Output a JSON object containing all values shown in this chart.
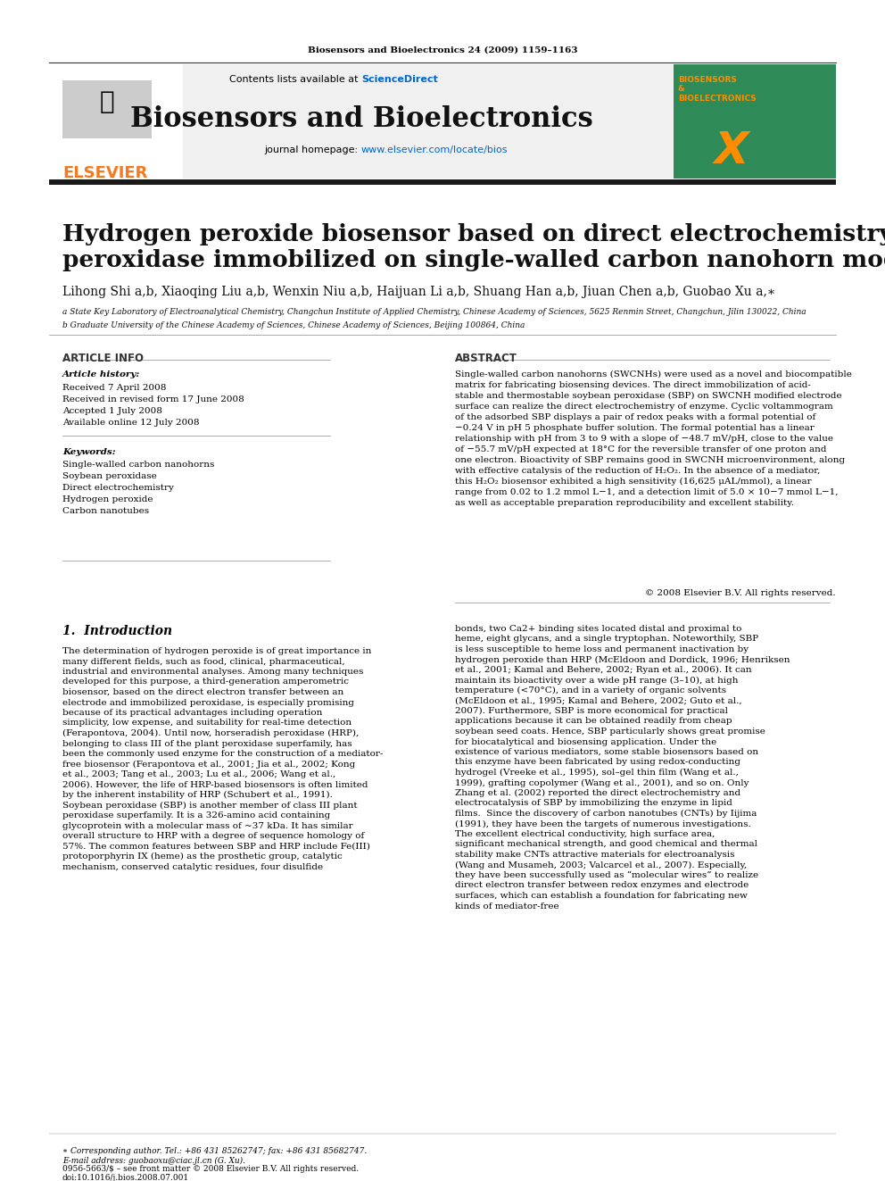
{
  "page_bg": "#ffffff",
  "header_citation": "Biosensors and Bioelectronics 24 (2009) 1159–1163",
  "journal_name": "Biosensors and Bioelectronics",
  "contents_text": "Contents lists available at ScienceDirect",
  "homepage_text": "journal homepage: www.elsevier.com/locate/bios",
  "elsevier_color": "#f47920",
  "sciencedirect_color": "#0066cc",
  "homepage_color": "#0066cc",
  "header_bg": "#f0f0f0",
  "journal_cover_bg": "#2e8b57",
  "paper_title": "Hydrogen peroxide biosensor based on direct electrochemistry of soybean\nperoxidase immobilized on single-walled carbon nanohorn modified electrode",
  "authors": "Lihong Shi a,b, Xiaoqing Liu a,b, Wenxin Niu a,b, Haijuan Li a,b, Shuang Han a,b, Jiuan Chen a,b, Guobao Xu a,∗",
  "affiliation_a": "a State Key Laboratory of Electroanalytical Chemistry, Changchun Institute of Applied Chemistry, Chinese Academy of Sciences, 5625 Renmin Street, Changchun, Jilin 130022, China",
  "affiliation_b": "b Graduate University of the Chinese Academy of Sciences, Chinese Academy of Sciences, Beijing 100864, China",
  "article_info_header": "ARTICLE INFO",
  "abstract_header": "ABSTRACT",
  "article_history_label": "Article history:",
  "received": "Received 7 April 2008",
  "revised": "Received in revised form 17 June 2008",
  "accepted": "Accepted 1 July 2008",
  "available": "Available online 12 July 2008",
  "keywords_label": "Keywords:",
  "keywords": [
    "Single-walled carbon nanohorns",
    "Soybean peroxidase",
    "Direct electrochemistry",
    "Hydrogen peroxide",
    "Carbon nanotubes"
  ],
  "abstract_text": "Single-walled carbon nanohorns (SWCNHs) were used as a novel and biocompatible matrix for fabricating biosensing devices. The direct immobilization of acid-stable and thermostable soybean peroxidase (SBP) on SWCNH modified electrode surface can realize the direct electrochemistry of enzyme. Cyclic voltammogram of the adsorbed SBP displays a pair of redox peaks with a formal potential of −0.24 V in pH 5 phosphate buffer solution. The formal potential has a linear relationship with pH from 3 to 9 with a slope of −48.7 mV/pH, close to the value of −55.7 mV/pH expected at 18°C for the reversible transfer of one proton and one electron. Bioactivity of SBP remains good in SWCNH microenvironment, along with effective catalysis of the reduction of H₂O₂. In the absence of a mediator, this H₂O₂ biosensor exhibited a high sensitivity (16,625 μAL/mmol), a linear range from 0.02 to 1.2 mmol L−1, and a detection limit of 5.0 × 10−7 mmol L−1, as well as acceptable preparation reproducibility and excellent stability.",
  "copyright": "© 2008 Elsevier B.V. All rights reserved.",
  "intro_header": "1.  Introduction",
  "intro_col1": "The determination of hydrogen peroxide is of great importance in many different fields, such as food, clinical, pharmaceutical, industrial and environmental analyses. Among many techniques developed for this purpose, a third-generation amperometric biosensor, based on the direct electron transfer between an electrode and immobilized peroxidase, is especially promising because of its practical advantages including operation simplicity, low expense, and suitability for real-time detection (Ferapontova, 2004). Until now, horseradish peroxidase (HRP), belonging to class III of the plant peroxidase superfamily, has been the commonly used enzyme for the construction of a mediator-free biosensor (Ferapontova et al., 2001; Jia et al., 2002; Kong et al., 2003; Tang et al., 2003; Lu et al., 2006; Wang et al., 2006). However, the life of HRP-based biosensors is often limited by the inherent instability of HRP (Schubert et al., 1991). Soybean peroxidase (SBP) is another member of class III plant peroxidase superfamily. It is a 326-amino acid containing glycoprotein with a molecular mass of ~37 kDa. It has similar overall structure to HRP with a degree of sequence homology of 57%. The common features between SBP and HRP include Fe(III) protoporphyrin IX (heme) as the prosthetic group, catalytic mechanism, conserved catalytic residues, four disulfide",
  "intro_col2": "bonds, two Ca2+ binding sites located distal and proximal to heme, eight glycans, and a single tryptophan. Noteworthily, SBP is less susceptible to heme loss and permanent inactivation by hydrogen peroxide than HRP (McEldoon and Dordick, 1996; Henriksen et al., 2001; Kamal and Behere, 2002; Ryan et al., 2006). It can maintain its bioactivity over a wide pH range (3–10), at high temperature (<70°C), and in a variety of organic solvents (McEldoon et al., 1995; Kamal and Behere, 2002; Guto et al., 2007). Furthermore, SBP is more economical for practical applications because it can be obtained readily from cheap soybean seed coats. Hence, SBP particularly shows great promise for biocatalytical and biosensing application. Under the existence of various mediators, some stable biosensors based on this enzyme have been fabricated by using redox-conducting hydrogel (Vreeke et al., 1995), sol–gel thin film (Wang et al., 1999), grafting copolymer (Wang et al., 2001), and so on. Only Zhang et al. (2002) reported the direct electrochemistry and electrocatalysis of SBP by immobilizing the enzyme in lipid films.\n\nSince the discovery of carbon nanotubes (CNTs) by Iijima (1991), they have been the targets of numerous investigations. The excellent electrical conductivity, high surface area, significant mechanical strength, and good chemical and thermal stability make CNTs attractive materials for electroanalysis (Wang and Musameh, 2003; Valcarcel et al., 2007). Especially, they have been successfully used as “molecular wires” to realize direct electron transfer between redox enzymes and electrode surfaces, which can establish a foundation for fabricating new kinds of mediator-free",
  "footer_left": "0956-5663/$ – see front matter © 2008 Elsevier B.V. All rights reserved.\ndoi:10.1016/j.bios.2008.07.001",
  "footer_corresponding": "∗ Corresponding author. Tel.: +86 431 85262747; fax: +86 431 85682747.\nE-mail address: guobaoxu@ciac.jl.cn (G. Xu)."
}
